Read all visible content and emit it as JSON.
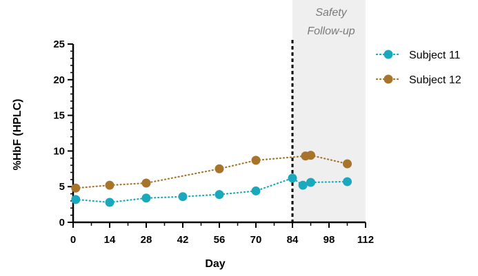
{
  "chart_data": {
    "type": "line",
    "xlabel": "Day",
    "ylabel": "%HbF (HPLC)",
    "xlim": [
      0,
      112
    ],
    "ylim": [
      0,
      25
    ],
    "x_ticks": [
      0,
      14,
      28,
      42,
      56,
      70,
      84,
      98,
      112
    ],
    "y_ticks": [
      0,
      5,
      10,
      15,
      20,
      25
    ],
    "grid": false,
    "legend_position": "top-right",
    "shaded_region": {
      "label_line1": "Safety",
      "label_line2": "Follow-up",
      "x_start": 84,
      "x_end": 112,
      "color": "#efefef"
    },
    "vline": {
      "x": 84,
      "style": "dashed",
      "color": "#000000"
    },
    "series": [
      {
        "name": "Subject 11",
        "color": "#1aa8bd",
        "x": [
          1,
          14,
          28,
          42,
          56,
          70,
          84,
          88,
          91,
          105
        ],
        "y": [
          3.2,
          2.8,
          3.4,
          3.6,
          3.9,
          4.4,
          6.2,
          5.2,
          5.6,
          5.7
        ]
      },
      {
        "name": "Subject 12",
        "color": "#a8732a",
        "x": [
          1,
          14,
          28,
          56,
          70,
          89,
          91,
          105
        ],
        "y": [
          4.8,
          5.2,
          5.5,
          7.5,
          8.7,
          9.3,
          9.4,
          8.2
        ]
      }
    ]
  }
}
